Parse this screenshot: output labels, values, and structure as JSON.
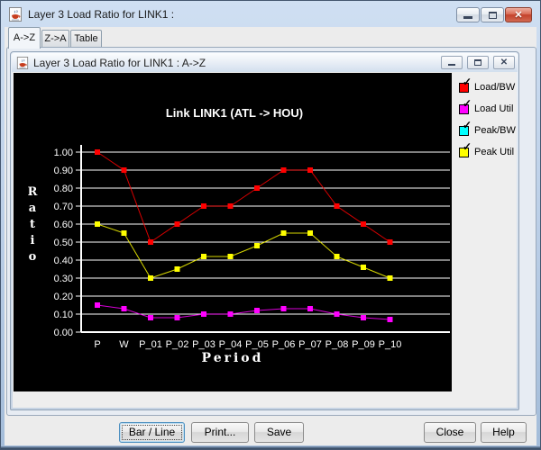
{
  "window": {
    "title": "Layer 3 Load Ratio for LINK1 :"
  },
  "tabs": [
    {
      "label": "A->Z",
      "active": true
    },
    {
      "label": "Z->A",
      "active": false
    },
    {
      "label": "Table",
      "active": false
    }
  ],
  "inner_window": {
    "title": "Layer 3 Load Ratio for LINK1 : A->Z"
  },
  "chart_data": {
    "type": "line",
    "title": "Link LINK1 (ATL -> HOU)",
    "xlabel": "Period",
    "ylabel": "Ratio",
    "background": "#000000",
    "grid": true,
    "legend_position": "right",
    "ylim": [
      0,
      1.0
    ],
    "yticks": [
      "0.00",
      "0.10",
      "0.20",
      "0.30",
      "0.40",
      "0.50",
      "0.60",
      "0.70",
      "0.80",
      "0.90",
      "1.00"
    ],
    "categories": [
      "P",
      "W",
      "P_01",
      "P_02",
      "P_03",
      "P_04",
      "P_05",
      "P_06",
      "P_07",
      "P_08",
      "P_09",
      "P_10"
    ],
    "series": [
      {
        "name": "Load/BW",
        "color": "#ff0000",
        "values": [
          1.0,
          0.9,
          0.5,
          0.6,
          0.7,
          0.7,
          0.8,
          0.9,
          0.9,
          0.7,
          0.6,
          0.5
        ]
      },
      {
        "name": "Load Util",
        "color": "#ff00ff",
        "values": [
          0.15,
          0.13,
          0.08,
          0.08,
          0.1,
          0.1,
          0.12,
          0.13,
          0.13,
          0.1,
          0.08,
          0.07
        ]
      },
      {
        "name": "Peak Util",
        "color": "#ffff00",
        "values": [
          0.6,
          0.55,
          0.3,
          0.35,
          0.42,
          0.42,
          0.48,
          0.55,
          0.55,
          0.42,
          0.36,
          0.3
        ]
      }
    ],
    "legend": [
      {
        "label": "Load/BW",
        "color": "#ff0000",
        "checked": true
      },
      {
        "label": "Load Util",
        "color": "#ff00ff",
        "checked": true
      },
      {
        "label": "Peak/BW",
        "color": "#00ffff",
        "checked": true
      },
      {
        "label": "Peak Util",
        "color": "#ffff00",
        "checked": true
      }
    ]
  },
  "buttons": {
    "bar_line": "Bar / Line",
    "print": "Print...",
    "save": "Save",
    "close": "Close",
    "help": "Help"
  },
  "icons": {
    "check": "✓",
    "close": "✕"
  }
}
